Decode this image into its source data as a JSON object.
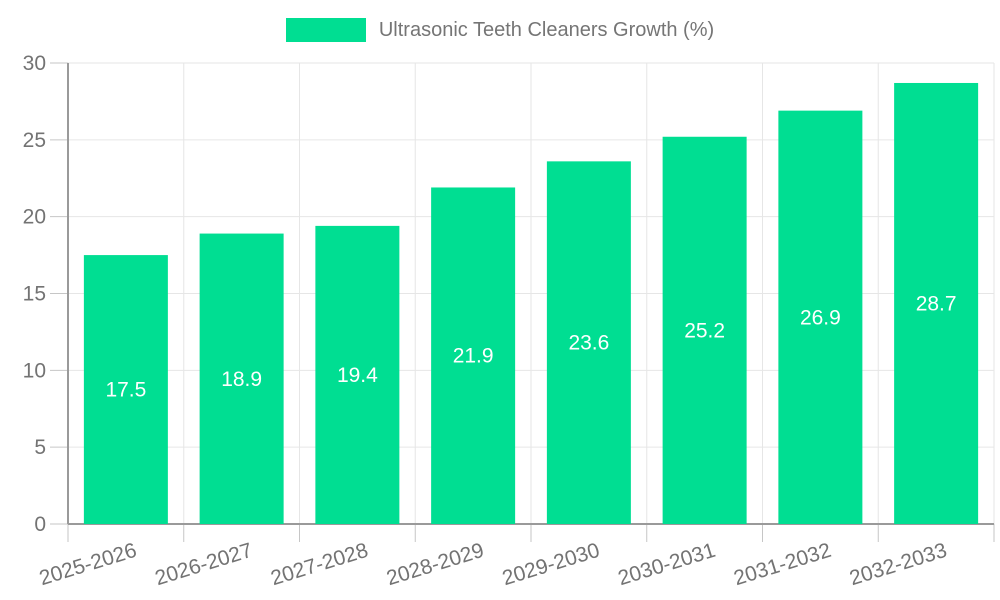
{
  "legend": {
    "label": "Ultrasonic Teeth Cleaners Growth (%)"
  },
  "chart_data": {
    "type": "bar",
    "title": "Ultrasonic Teeth Cleaners Growth (%)",
    "categories": [
      "2025-2026",
      "2026-2027",
      "2027-2028",
      "2028-2029",
      "2029-2030",
      "2030-2031",
      "2031-2032",
      "2032-2033"
    ],
    "values": [
      17.5,
      18.9,
      19.4,
      21.9,
      23.6,
      25.2,
      26.9,
      28.7
    ],
    "value_labels": [
      "17.5",
      "18.9",
      "19.4",
      "21.9",
      "23.6",
      "25.2",
      "26.9",
      "28.7"
    ],
    "xlabel": "",
    "ylabel": "",
    "ylim": [
      0,
      30
    ],
    "yticks": [
      0,
      5,
      10,
      15,
      20,
      25,
      30
    ],
    "ytick_labels": [
      "0",
      "5",
      "10",
      "15",
      "20",
      "25",
      "30"
    ],
    "grid": true,
    "legend_position": "top",
    "x_label_rotation_deg": -17,
    "colors": {
      "bar": "#00DE92",
      "value_label": "#ffffff",
      "tick_text": "#737373",
      "legend_text": "#757575",
      "gridline": "#e6e6e6",
      "tick_mark": "#c6c6c6",
      "axis_line": "#9a9a9a",
      "background": "#ffffff"
    }
  }
}
